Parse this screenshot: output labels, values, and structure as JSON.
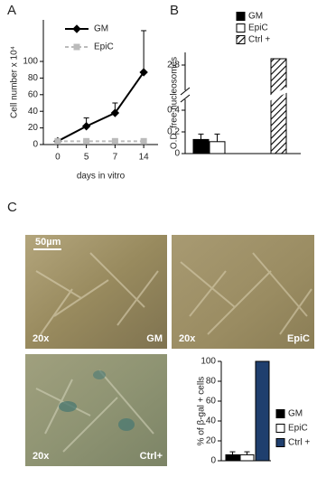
{
  "panel_labels": [
    "A",
    "B",
    "C"
  ],
  "images": [
    {
      "magnification": "20x",
      "label": "GM",
      "scale_bar": "50µm"
    },
    {
      "magnification": "20x",
      "label": "EpiC"
    },
    {
      "magnification": "20x",
      "label": "Ctrl+"
    }
  ],
  "chart_data": [
    {
      "type": "line",
      "ylabel": "Cell number x 10⁴",
      "xlabel": "days in vitro",
      "categories": [
        "0",
        "5",
        "7",
        "14"
      ],
      "series": [
        {
          "name": "GM",
          "color": "#000000",
          "linestyle": "solid",
          "marker": "diamond",
          "values": [
            4,
            22,
            38,
            87
          ],
          "errors": [
            null,
            10,
            12,
            50
          ]
        },
        {
          "name": "EpiC",
          "color": "#bbbbbb",
          "linestyle": "dashed",
          "marker": "square",
          "values": [
            4,
            4,
            4,
            4
          ]
        }
      ],
      "ylim": [
        0,
        150
      ],
      "yticks": [
        0,
        20,
        40,
        60,
        80,
        100
      ]
    },
    {
      "type": "bar",
      "ylabel": "O.D. free nucleosomes",
      "series": [
        {
          "name": "GM",
          "color": "#000000",
          "values": [
            0.13
          ],
          "errors": [
            0.05
          ]
        },
        {
          "name": "EpiC",
          "color": "#ffffff",
          "values": [
            0.11
          ],
          "errors": [
            0.07
          ]
        },
        {
          "name": "Ctrl +",
          "color": "#000000",
          "hatch": true,
          "values": [
            2.85
          ]
        }
      ],
      "ylim": [
        0,
        0.5
      ],
      "yticks": [
        0,
        0.2,
        0.4
      ],
      "ylim_upper": [
        2.6,
        2.9
      ],
      "yticks_upper": [
        2.8
      ],
      "axis_break": true
    },
    {
      "type": "bar",
      "ylabel": "% of β-gal + cells",
      "series": [
        {
          "name": "GM",
          "color": "#000000",
          "values": [
            6
          ],
          "errors": [
            3
          ]
        },
        {
          "name": "EpiC",
          "color": "#ffffff",
          "values": [
            6
          ],
          "errors": [
            3
          ]
        },
        {
          "name": "Ctrl +",
          "color": "#1f3f6e",
          "values": [
            100
          ]
        }
      ],
      "ylim": [
        0,
        100
      ],
      "yticks": [
        0,
        20,
        40,
        60,
        80,
        100
      ]
    }
  ]
}
